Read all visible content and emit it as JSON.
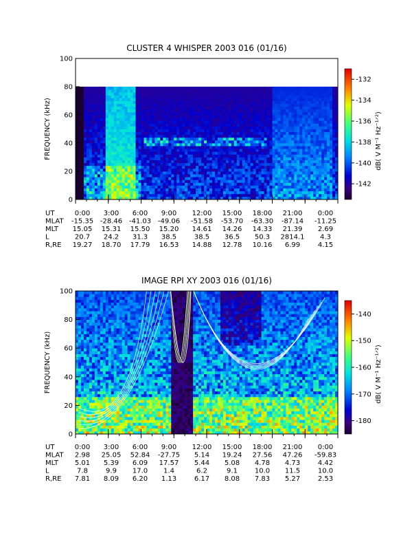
{
  "chart_data": [
    {
      "type": "heatmap",
      "title": "CLUSTER 4 WHISPER 2003 016 (01/16)",
      "ylabel": "FREQUENCY (kHz)",
      "colorbar_label": "dB( V M⁻¹ Hz⁻¹ᐟ²)",
      "colorbar_ticks": [
        "-132",
        "-134",
        "-136",
        "-138",
        "-140",
        "-142"
      ],
      "colorbar_range": [
        -143.5,
        -131
      ],
      "ylim": [
        0,
        100
      ],
      "y_ticks": [
        "0",
        "20",
        "40",
        "60",
        "80",
        "100"
      ],
      "xlim_hours": [
        0,
        24
      ],
      "x_ticks": [
        "0:00",
        "3:00",
        "6:00",
        "9:00",
        "12:00",
        "15:00",
        "18:00",
        "21:00",
        "0:00"
      ],
      "data_top_khz": 80,
      "ephemeris": [
        {
          "label": "UT",
          "values": [
            "0:00",
            "3:00",
            "6:00",
            "9:00",
            "12:00",
            "15:00",
            "18:00",
            "21:00",
            "0:00"
          ]
        },
        {
          "label": "MLAT",
          "values": [
            "-15.35",
            "-28.46",
            "-41.03",
            "-49.06",
            "-51.58",
            "-53.70",
            "-63.30",
            "-87.14",
            "-11.25"
          ]
        },
        {
          "label": "MLT",
          "values": [
            "15.05",
            "15.31",
            "15.50",
            "15.20",
            "14.61",
            "14.26",
            "14.33",
            "21.39",
            "2.69"
          ]
        },
        {
          "label": "L",
          "values": [
            "20.7",
            "24.2",
            "31.3",
            "38.5",
            "38.5",
            "36.5",
            "50.3",
            "2814.1",
            "4.3"
          ]
        },
        {
          "label": "R,RE",
          "values": [
            "19.27",
            "18.70",
            "17.79",
            "16.53",
            "14.88",
            "12.78",
            "10.16",
            "6.99",
            "4.15"
          ]
        }
      ]
    },
    {
      "type": "heatmap",
      "title": "IMAGE RPI XY 2003 016 (01/16)",
      "ylabel": "FREQUENCY (kHz)",
      "colorbar_label": "dB( V M⁻¹ Hz⁻¹ᐟ²)",
      "colorbar_ticks": [
        "-140",
        "-150",
        "-160",
        "-170",
        "-180"
      ],
      "colorbar_range": [
        -185,
        -135
      ],
      "ylim": [
        0,
        100
      ],
      "y_ticks": [
        "0",
        "20",
        "40",
        "60",
        "80",
        "100"
      ],
      "xlim_hours": [
        0,
        24
      ],
      "x_ticks": [
        "0:00",
        "3:00",
        "6:00",
        "9:00",
        "12:00",
        "15:00",
        "18:00",
        "21:00",
        "0:00"
      ],
      "data_top_khz": 100,
      "ephemeris": [
        {
          "label": "UT",
          "values": [
            "0:00",
            "3:00",
            "6:00",
            "9:00",
            "12:00",
            "15:00",
            "18:00",
            "21:00",
            "0:00"
          ]
        },
        {
          "label": "MLAT",
          "values": [
            "2.98",
            "25.05",
            "52.84",
            "-27.75",
            "5.14",
            "19.24",
            "27.56",
            "47.26",
            "-59.83"
          ]
        },
        {
          "label": "MLT",
          "values": [
            "5.01",
            "5.39",
            "6.09",
            "17.57",
            "5.44",
            "5.08",
            "4.78",
            "4.73",
            "4.42"
          ]
        },
        {
          "label": "L",
          "values": [
            "7.8",
            "9.9",
            "17.0",
            "1.4",
            "6.2",
            "9.1",
            "10.0",
            "11.5",
            "10.0"
          ]
        },
        {
          "label": "R,RE",
          "values": [
            "7.81",
            "8.09",
            "6.20",
            "1.13",
            "6.17",
            "8.08",
            "7.83",
            "5.27",
            "2.53"
          ]
        }
      ]
    }
  ]
}
